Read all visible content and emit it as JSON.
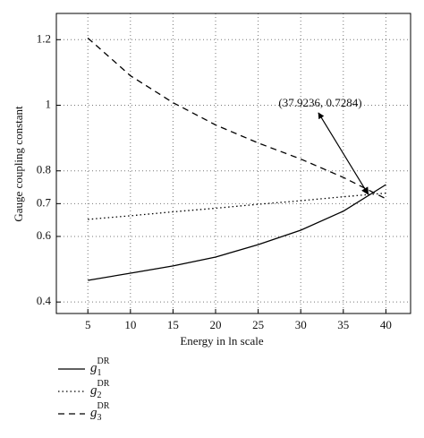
{
  "chart_data": {
    "type": "line",
    "xlabel": "Energy in ln scale",
    "ylabel": "Gauge coupling constant",
    "x": [
      5,
      10,
      15,
      20,
      25,
      30,
      35,
      40
    ],
    "series": [
      {
        "name": "g",
        "name_sub": "1",
        "name_sup": "DR",
        "color": "#000000",
        "dash": "none",
        "values": [
          0.466,
          0.488,
          0.51,
          0.537,
          0.575,
          0.619,
          0.677,
          0.758
        ]
      },
      {
        "name": "g",
        "name_sub": "2",
        "name_sup": "DR",
        "color": "#000000",
        "dash": "1.5,3",
        "values": [
          0.652,
          0.663,
          0.675,
          0.686,
          0.698,
          0.709,
          0.721,
          0.732
        ]
      },
      {
        "name": "g",
        "name_sub": "3",
        "name_sup": "DR",
        "color": "#000000",
        "dash": "7,5",
        "values": [
          1.205,
          1.09,
          1.008,
          0.94,
          0.885,
          0.836,
          0.78,
          0.715
        ]
      }
    ],
    "annotation": {
      "text": "(37.9236, 0.7284)",
      "x": 37.9236,
      "y": 0.7284
    },
    "xlim": [
      1.3,
      42.9
    ],
    "ylim": [
      0.365,
      1.28
    ],
    "xticks": [
      5,
      10,
      15,
      20,
      25,
      30,
      35,
      40
    ],
    "yticks": [
      0.4,
      0.6,
      0.7,
      0.8,
      1,
      1.2
    ],
    "grid": true
  }
}
